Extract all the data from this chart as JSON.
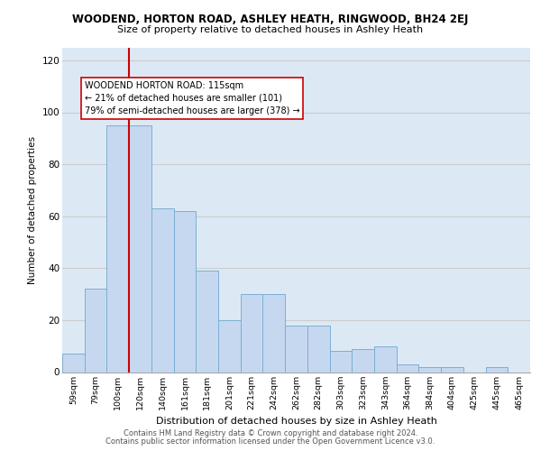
{
  "title": "WOODEND, HORTON ROAD, ASHLEY HEATH, RINGWOOD, BH24 2EJ",
  "subtitle": "Size of property relative to detached houses in Ashley Heath",
  "xlabel": "Distribution of detached houses by size in Ashley Heath",
  "ylabel": "Number of detached properties",
  "categories": [
    "59sqm",
    "79sqm",
    "100sqm",
    "120sqm",
    "140sqm",
    "161sqm",
    "181sqm",
    "201sqm",
    "221sqm",
    "242sqm",
    "262sqm",
    "282sqm",
    "303sqm",
    "323sqm",
    "343sqm",
    "364sqm",
    "384sqm",
    "404sqm",
    "425sqm",
    "445sqm",
    "465sqm"
  ],
  "values": [
    7,
    32,
    95,
    95,
    63,
    62,
    39,
    20,
    30,
    30,
    18,
    18,
    8,
    9,
    10,
    3,
    2,
    2,
    0,
    2,
    0
  ],
  "bar_color": "#c5d8f0",
  "bar_edge_color": "#7bafd4",
  "vline_color": "#cc0000",
  "annotation_text": "WOODEND HORTON ROAD: 115sqm\n← 21% of detached houses are smaller (101)\n79% of semi-detached houses are larger (378) →",
  "annotation_box_color": "#ffffff",
  "annotation_box_edge": "#cc0000",
  "ylim": [
    0,
    125
  ],
  "yticks": [
    0,
    20,
    40,
    60,
    80,
    100,
    120
  ],
  "grid_color": "#cccccc",
  "bg_color": "#dce9f5",
  "footer_line1": "Contains HM Land Registry data © Crown copyright and database right 2024.",
  "footer_line2": "Contains public sector information licensed under the Open Government Licence v3.0."
}
